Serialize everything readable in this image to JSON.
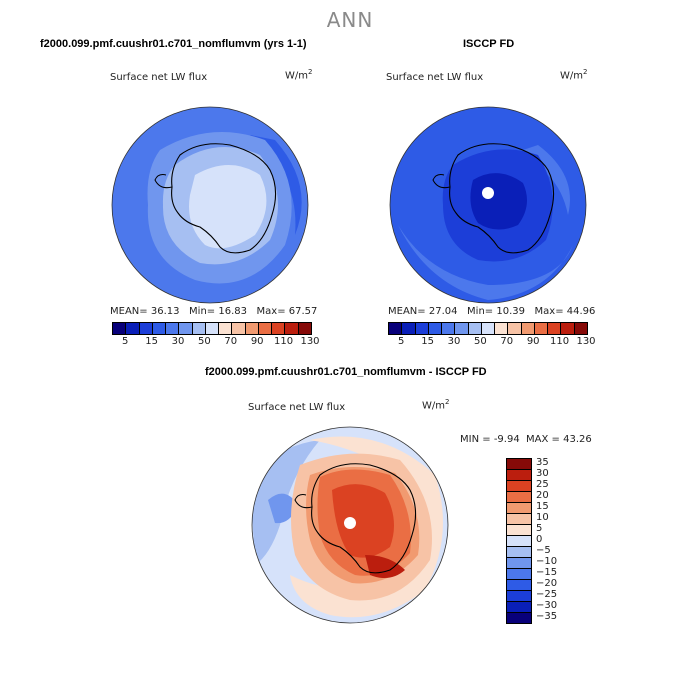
{
  "main_title": "ANN",
  "units": {
    "base": "W/m",
    "exp": "2"
  },
  "colors": {
    "abs_palette": [
      "#08007a",
      "#0a1fb8",
      "#1c3ed8",
      "#2e5be6",
      "#4c78ec",
      "#7096ee",
      "#a6bff2",
      "#d6e2fa",
      "#fbe2d2",
      "#f7c3a6",
      "#f19a70",
      "#ea6e44",
      "#db4222",
      "#bb1e0e",
      "#860a08"
    ],
    "diff_palette": [
      "#08007a",
      "#0a1fb8",
      "#1c3ed8",
      "#2e5be6",
      "#4c78ec",
      "#7096ee",
      "#a6bff2",
      "#d6e2fa",
      "#fbe2d2",
      "#f7c3a6",
      "#f19a70",
      "#ea6e44",
      "#db4222",
      "#bb1e0e",
      "#860a08"
    ]
  },
  "panels": {
    "model": {
      "title": "f2000.099.pmf.cuushr01.c701_nomflumvm (yrs 1-1)",
      "subtitle": "Surface net LW flux",
      "stats": {
        "mean_label": "MEAN=",
        "mean": "36.13",
        "min_label": "Min=",
        "min": "16.83",
        "max_label": "Max=",
        "max": "67.57"
      },
      "colorbar_labels": [
        "5",
        "15",
        "30",
        "50",
        "70",
        "90",
        "110",
        "130"
      ]
    },
    "obs": {
      "title": "ISCCP FD",
      "subtitle": "Surface net LW flux",
      "stats": {
        "mean_label": "MEAN=",
        "mean": "27.04",
        "min_label": "Min=",
        "min": "10.39",
        "max_label": "Max=",
        "max": "44.96"
      },
      "colorbar_labels": [
        "5",
        "15",
        "30",
        "50",
        "70",
        "90",
        "110",
        "130"
      ]
    },
    "diff": {
      "title": "f2000.099.pmf.cuushr01.c701_nomflumvm - ISCCP FD",
      "subtitle": "Surface net LW flux",
      "stats": {
        "min_label": "MIN =",
        "min": "-9.94",
        "max_label": "MAX =",
        "max": "43.26"
      },
      "colorbar_labels": [
        "35",
        "30",
        "25",
        "20",
        "15",
        "10",
        "5",
        "0",
        "−5",
        "−10",
        "−15",
        "−20",
        "−25",
        "−30",
        "−35"
      ]
    }
  },
  "chart_data": [
    {
      "type": "heatmap",
      "title": "f2000.099.pmf.cuushr01.c701_nomflumvm (yrs 1-1)",
      "subtitle": "Surface net LW flux",
      "projection": "south polar stereographic",
      "units": "W/m^2",
      "stats": {
        "mean": 36.13,
        "min": 16.83,
        "max": 67.57
      },
      "colorbar_levels": [
        5,
        10,
        15,
        20,
        30,
        40,
        50,
        60,
        70,
        80,
        90,
        100,
        110,
        120,
        130
      ],
      "colorbar_tick_labels": [
        "5",
        "15",
        "30",
        "50",
        "70",
        "90",
        "110",
        "130"
      ]
    },
    {
      "type": "heatmap",
      "title": "ISCCP FD",
      "subtitle": "Surface net LW flux",
      "projection": "south polar stereographic",
      "units": "W/m^2",
      "stats": {
        "mean": 27.04,
        "min": 10.39,
        "max": 44.96
      },
      "colorbar_levels": [
        5,
        10,
        15,
        20,
        30,
        40,
        50,
        60,
        70,
        80,
        90,
        100,
        110,
        120,
        130
      ],
      "colorbar_tick_labels": [
        "5",
        "15",
        "30",
        "50",
        "70",
        "90",
        "110",
        "130"
      ]
    },
    {
      "type": "heatmap",
      "title": "f2000.099.pmf.cuushr01.c701_nomflumvm - ISCCP FD",
      "subtitle": "Surface net LW flux",
      "projection": "south polar stereographic",
      "units": "W/m^2",
      "stats": {
        "min": -9.94,
        "max": 43.26
      },
      "colorbar_levels": [
        35,
        30,
        25,
        20,
        15,
        10,
        5,
        0,
        -5,
        -10,
        -15,
        -20,
        -25,
        -30,
        -35
      ]
    }
  ]
}
